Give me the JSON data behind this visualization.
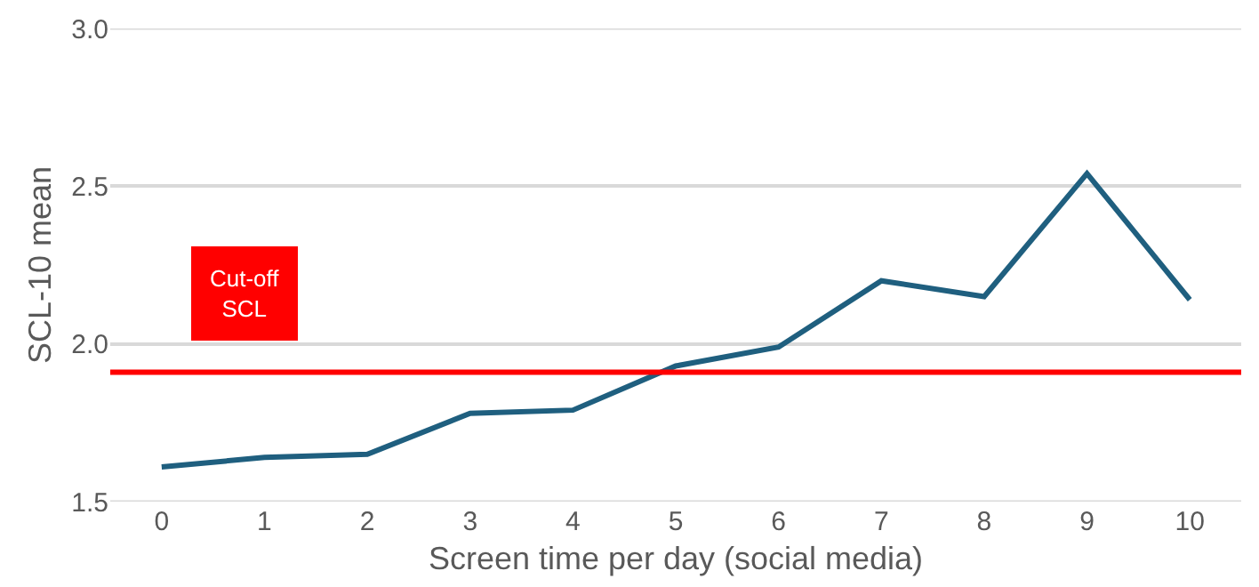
{
  "chart_data": {
    "type": "line",
    "xlabel": "Screen time per day (social media)",
    "ylabel": "SCL-10 mean",
    "categories": [
      "0",
      "1",
      "2",
      "3",
      "4",
      "5",
      "6",
      "7",
      "8",
      "9",
      "10"
    ],
    "series": [
      {
        "color": "#1f5f7f",
        "values": [
          1.61,
          1.64,
          1.65,
          1.78,
          1.79,
          1.93,
          1.99,
          2.2,
          2.15,
          2.54,
          2.14
        ]
      }
    ],
    "ylim": [
      1.5,
      3.0
    ],
    "yticks": [
      1.5,
      {
        "value": 2,
        "label": "2.0"
      },
      2.5,
      {
        "value": 3,
        "label": "3.0"
      }
    ],
    "grid": "y",
    "marker": "none",
    "line_style": "solid",
    "ref_lines": [
      {
        "axis": "y",
        "value": 1.91,
        "label": "Cut-off\nSCL",
        "color": "#ff0000"
      }
    ]
  }
}
